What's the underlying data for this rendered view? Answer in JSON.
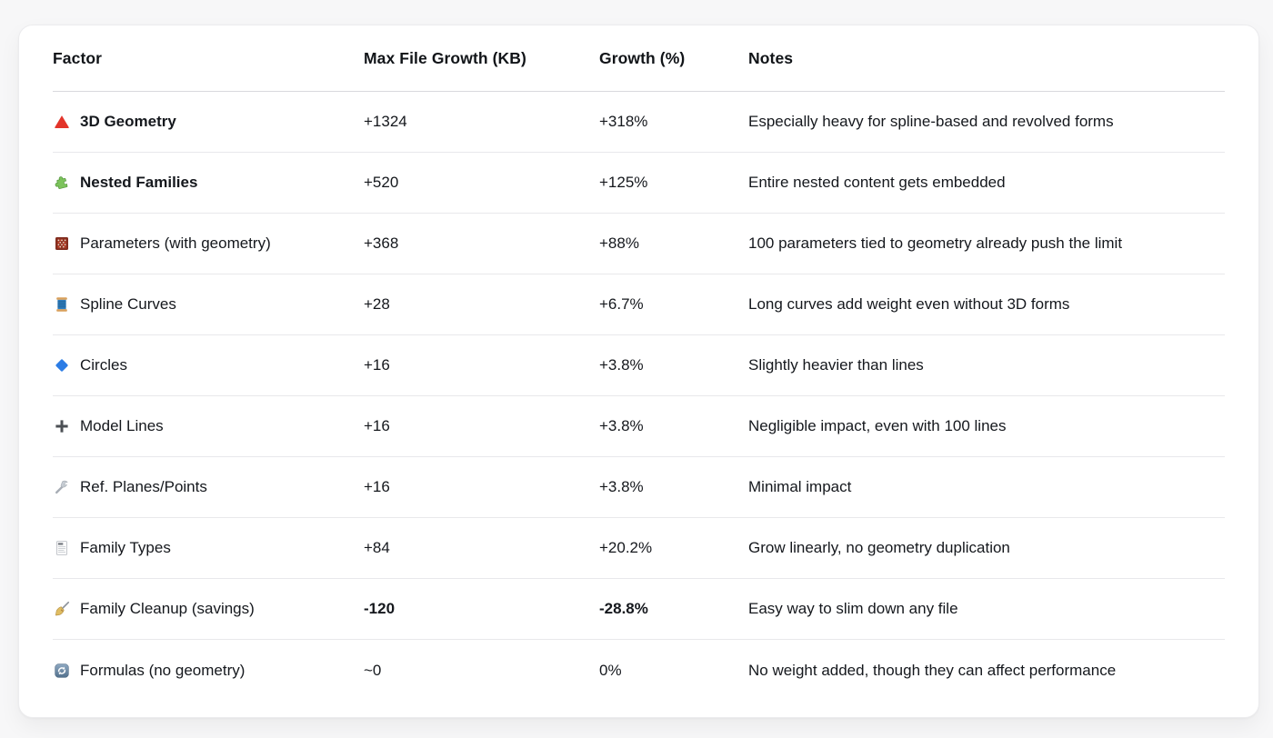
{
  "colors": {
    "page_background": "#f7f7f8",
    "card_background": "#ffffff",
    "card_border": "#ececee",
    "header_divider": "#d9d9dd",
    "row_divider": "#e8e8eb",
    "text": "#15181d"
  },
  "table": {
    "columns": [
      {
        "key": "factor",
        "label": "Factor"
      },
      {
        "key": "growth_kb",
        "label": "Max File Growth (KB)"
      },
      {
        "key": "growth_pct",
        "label": "Growth (%)"
      },
      {
        "key": "notes",
        "label": "Notes"
      }
    ],
    "rows": [
      {
        "icon": "red-triangle-icon",
        "factor": "3D Geometry",
        "factor_bold": true,
        "values_bold": false,
        "growth_kb": "+1324",
        "growth_pct": "+318%",
        "notes": "Especially heavy for spline-based and revolved forms"
      },
      {
        "icon": "puzzle-piece-icon",
        "factor": "Nested Families",
        "factor_bold": true,
        "values_bold": false,
        "growth_kb": "+520",
        "growth_pct": "+125%",
        "notes": "Entire nested content gets embedded"
      },
      {
        "icon": "abacus-icon",
        "factor": "Parameters (with geometry)",
        "factor_bold": false,
        "values_bold": false,
        "growth_kb": "+368",
        "growth_pct": "+88%",
        "notes": "100 parameters tied to geometry already push the limit"
      },
      {
        "icon": "thread-spool-icon",
        "factor": "Spline Curves",
        "factor_bold": false,
        "values_bold": false,
        "growth_kb": "+28",
        "growth_pct": "+6.7%",
        "notes": "Long curves add weight even without 3D forms"
      },
      {
        "icon": "blue-diamond-icon",
        "factor": "Circles",
        "factor_bold": false,
        "values_bold": false,
        "growth_kb": "+16",
        "growth_pct": "+3.8%",
        "notes": "Slightly heavier than lines"
      },
      {
        "icon": "plus-icon",
        "factor": "Model Lines",
        "factor_bold": false,
        "values_bold": false,
        "growth_kb": "+16",
        "growth_pct": "+3.8%",
        "notes": "Negligible impact, even with 100 lines"
      },
      {
        "icon": "wrench-icon",
        "factor": "Ref. Planes/Points",
        "factor_bold": false,
        "values_bold": false,
        "growth_kb": "+16",
        "growth_pct": "+3.8%",
        "notes": "Minimal impact"
      },
      {
        "icon": "notepad-icon",
        "factor": "Family Types",
        "factor_bold": false,
        "values_bold": false,
        "growth_kb": "+84",
        "growth_pct": "+20.2%",
        "notes": "Grow linearly, no geometry duplication"
      },
      {
        "icon": "broom-icon",
        "factor": "Family Cleanup (savings)",
        "factor_bold": false,
        "values_bold": true,
        "growth_kb": "-120",
        "growth_pct": "-28.8%",
        "notes": "Easy way to slim down any file"
      },
      {
        "icon": "sync-arrows-icon",
        "factor": "Formulas (no geometry)",
        "factor_bold": false,
        "values_bold": false,
        "growth_kb": "~0",
        "growth_pct": "0%",
        "notes": "No weight added, though they can affect performance"
      }
    ]
  }
}
